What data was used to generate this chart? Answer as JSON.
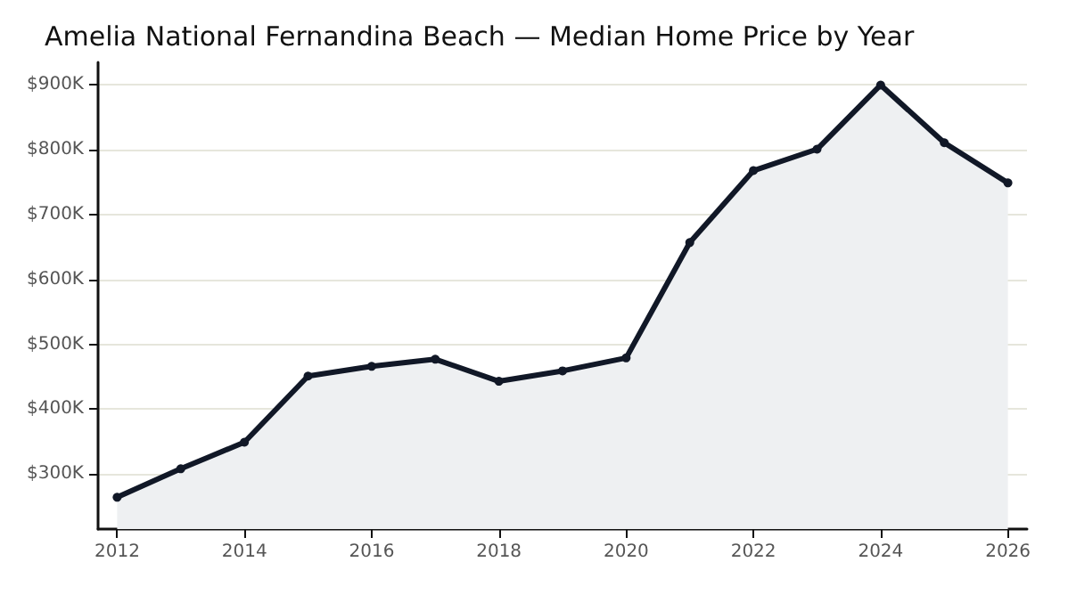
{
  "chart_data": {
    "type": "area",
    "title": "Amelia National Fernandina Beach — Median Home Price by Year",
    "x": [
      2012,
      2013,
      2014,
      2015,
      2016,
      2017,
      2018,
      2019,
      2020,
      2021,
      2022,
      2023,
      2024,
      2025,
      2026
    ],
    "series": [
      {
        "color": "#111827",
        "values": [
          264000,
          308000,
          349000,
          451000,
          466000,
          477000,
          443000,
          459000,
          479000,
          657000,
          768000,
          801000,
          900000,
          811000,
          749000
        ]
      }
    ],
    "xlim": [
      2011.7,
      2026.3
    ],
    "xticks": [
      2012,
      2014,
      2016,
      2018,
      2020,
      2022,
      2024,
      2026
    ],
    "ylim": [
      215000,
      935000
    ],
    "yticks": [
      {
        "value": 300000,
        "label": "$300K"
      },
      {
        "value": 400000,
        "label": "$400K"
      },
      {
        "value": 500000,
        "label": "$500K"
      },
      {
        "value": 600000,
        "label": "$600K"
      },
      {
        "value": 700000,
        "label": "$700K"
      },
      {
        "value": 800000,
        "label": "$800K"
      },
      {
        "value": 900000,
        "label": "$900K"
      }
    ],
    "grid": "y",
    "marker": "circle",
    "line_style": "solid"
  }
}
